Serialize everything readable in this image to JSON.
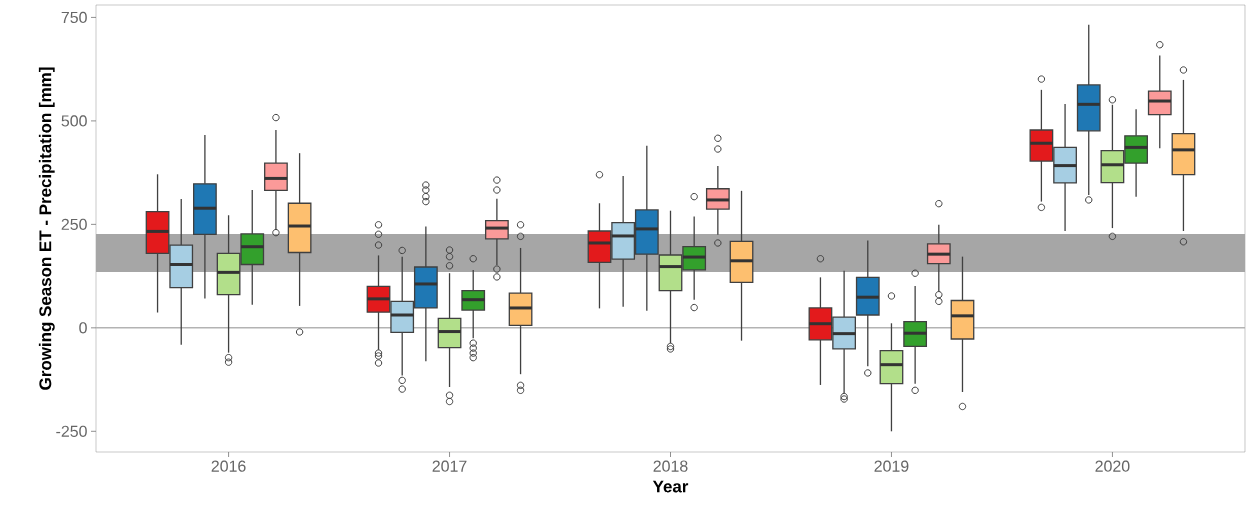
{
  "chart_data": {
    "type": "box",
    "xlabel": "Year",
    "ylabel": "Growing Season ET - Precipitation [mm]",
    "categories": [
      "2016",
      "2017",
      "2018",
      "2019",
      "2020"
    ],
    "ylim": [
      -300,
      780
    ],
    "yticks": [
      -250,
      0,
      250,
      500,
      750
    ],
    "ref_lines": [
      {
        "axis": "y",
        "value": 0,
        "color": "#b3b3b3"
      }
    ],
    "bands": [
      {
        "axis": "y",
        "from": 135,
        "to": 227,
        "color": "#a6a6a6"
      }
    ],
    "series": [
      {
        "color": "#e31a1c",
        "boxes": [
          {
            "low": 37,
            "q1": 180,
            "median": 233,
            "q3": 281,
            "high": 371
          },
          {
            "low": -53,
            "q1": 38,
            "median": 70,
            "q3": 100,
            "high": 175,
            "outliers": [
              249,
              226,
              200,
              -61,
              -68,
              -85
            ]
          },
          {
            "low": 47,
            "q1": 158,
            "median": 205,
            "q3": 234,
            "high": 301,
            "outliers": [
              370
            ]
          },
          {
            "low": -138,
            "q1": -29,
            "median": 10,
            "q3": 48,
            "high": 122,
            "outliers": [
              167
            ]
          },
          {
            "low": 305,
            "q1": 403,
            "median": 446,
            "q3": 478,
            "high": 575,
            "outliers": [
              601,
              291
            ]
          }
        ]
      },
      {
        "color": "#a6cee3",
        "boxes": [
          {
            "low": -41,
            "q1": 97,
            "median": 153,
            "q3": 200,
            "high": 311
          },
          {
            "low": -115,
            "q1": -11,
            "median": 31,
            "q3": 64,
            "high": 172,
            "outliers": [
              187,
              -127,
              -148
            ]
          },
          {
            "low": 51,
            "q1": 166,
            "median": 222,
            "q3": 254,
            "high": 367
          },
          {
            "low": -158,
            "q1": -51,
            "median": -14,
            "q3": 26,
            "high": 138,
            "outliers": [
              -166,
              -172
            ]
          },
          {
            "low": 234,
            "q1": 350,
            "median": 392,
            "q3": 436,
            "high": 541
          }
        ]
      },
      {
        "color": "#1f78b4",
        "boxes": [
          {
            "low": 71,
            "q1": 226,
            "median": 289,
            "q3": 348,
            "high": 466
          },
          {
            "low": -81,
            "q1": 48,
            "median": 106,
            "q3": 147,
            "high": 245,
            "outliers": [
              345,
              333,
              317,
              305
            ]
          },
          {
            "low": 41,
            "q1": 178,
            "median": 239,
            "q3": 285,
            "high": 440
          },
          {
            "low": -93,
            "q1": 31,
            "median": 74,
            "q3": 122,
            "high": 211,
            "outliers": [
              -109
            ]
          },
          {
            "low": 321,
            "q1": 476,
            "median": 540,
            "q3": 587,
            "high": 732,
            "outliers": [
              309
            ]
          }
        ]
      },
      {
        "color": "#b2df8a",
        "boxes": [
          {
            "low": -60,
            "q1": 80,
            "median": 134,
            "q3": 180,
            "high": 272,
            "outliers": [
              -72,
              -83
            ]
          },
          {
            "low": -143,
            "q1": -48,
            "median": -9,
            "q3": 23,
            "high": 132,
            "outliers": [
              188,
              172,
              150,
              -163,
              -178
            ]
          },
          {
            "low": -37,
            "q1": 90,
            "median": 148,
            "q3": 176,
            "high": 283,
            "outliers": [
              -45,
              -51
            ]
          },
          {
            "low": -250,
            "q1": -135,
            "median": -89,
            "q3": -55,
            "high": 11,
            "outliers": [
              77
            ]
          },
          {
            "low": 241,
            "q1": 351,
            "median": 394,
            "q3": 428,
            "high": 539,
            "outliers": [
              551,
              221
            ]
          }
        ]
      },
      {
        "color": "#33a02c",
        "boxes": [
          {
            "low": 56,
            "q1": 153,
            "median": 196,
            "q3": 227,
            "high": 333
          },
          {
            "low": -25,
            "q1": 43,
            "median": 68,
            "q3": 90,
            "high": 140,
            "outliers": [
              167,
              -37,
              -49,
              -61,
              -72
            ]
          },
          {
            "low": 68,
            "q1": 140,
            "median": 171,
            "q3": 196,
            "high": 269,
            "outliers": [
              317,
              49
            ]
          },
          {
            "low": -135,
            "q1": -45,
            "median": -13,
            "q3": 15,
            "high": 101,
            "outliers": [
              132,
              -151
            ]
          },
          {
            "low": 317,
            "q1": 398,
            "median": 436,
            "q3": 464,
            "high": 528
          }
        ]
      },
      {
        "color": "#fb9a99",
        "boxes": [
          {
            "low": 237,
            "q1": 332,
            "median": 361,
            "q3": 398,
            "high": 478,
            "outliers": [
              508,
              230
            ]
          },
          {
            "low": 152,
            "q1": 215,
            "median": 241,
            "q3": 259,
            "high": 312,
            "outliers": [
              357,
              333,
              142,
              123
            ]
          },
          {
            "low": 225,
            "q1": 287,
            "median": 309,
            "q3": 336,
            "high": 391,
            "outliers": [
              458,
              432,
              205
            ]
          },
          {
            "low": 88,
            "q1": 155,
            "median": 178,
            "q3": 203,
            "high": 249,
            "outliers": [
              300,
              80,
              64
            ]
          },
          {
            "low": 434,
            "q1": 515,
            "median": 548,
            "q3": 572,
            "high": 658,
            "outliers": [
              684
            ]
          }
        ]
      },
      {
        "color": "#fdbf6f",
        "boxes": [
          {
            "low": 53,
            "q1": 182,
            "median": 246,
            "q3": 301,
            "high": 422,
            "outliers": [
              -10
            ]
          },
          {
            "low": -112,
            "q1": 6,
            "median": 48,
            "q3": 84,
            "high": 193,
            "outliers": [
              249,
              221,
              -139,
              -151
            ]
          },
          {
            "low": -31,
            "q1": 110,
            "median": 162,
            "q3": 209,
            "high": 331
          },
          {
            "low": -155,
            "q1": -27,
            "median": 29,
            "q3": 66,
            "high": 172,
            "outliers": [
              -190
            ]
          },
          {
            "low": 234,
            "q1": 370,
            "median": 430,
            "q3": 469,
            "high": 599,
            "outliers": [
              623,
              208
            ]
          }
        ]
      }
    ]
  }
}
